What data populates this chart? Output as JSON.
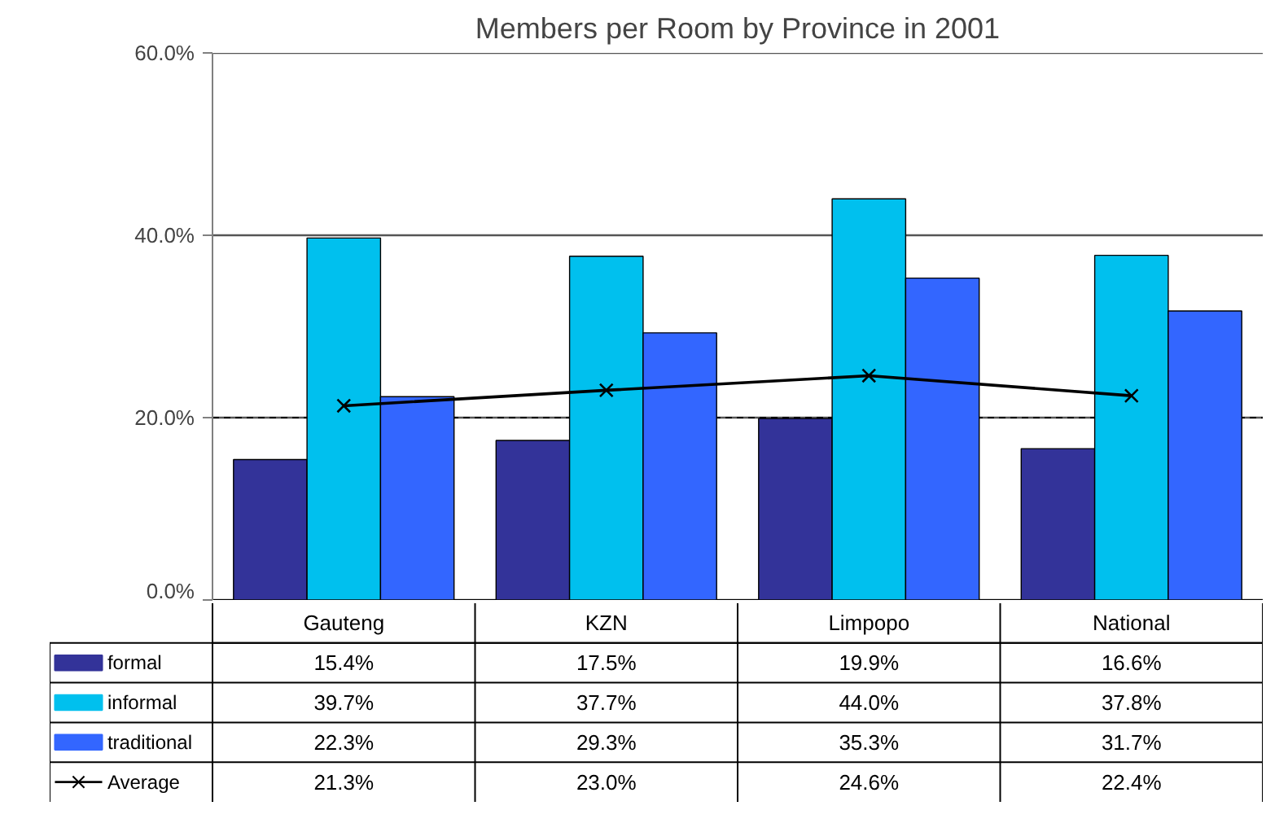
{
  "chart_data": {
    "type": "bar",
    "title": "Members per Room by Province in 2001",
    "categories": [
      "Gauteng",
      "KZN",
      "Limpopo",
      "National"
    ],
    "series": [
      {
        "name": "formal",
        "color": "#333399",
        "values": [
          15.4,
          17.5,
          19.9,
          16.6
        ]
      },
      {
        "name": "informal",
        "color": "#00c0ee",
        "values": [
          39.7,
          37.7,
          44.0,
          37.8
        ]
      },
      {
        "name": "traditional",
        "color": "#3366ff",
        "values": [
          22.3,
          29.3,
          35.3,
          31.7
        ]
      },
      {
        "name": "Average",
        "type": "line",
        "color": "#000000",
        "marker": "cross",
        "values": [
          21.3,
          23.0,
          24.6,
          22.4
        ]
      }
    ],
    "value_labels": [
      [
        "15.4%",
        "17.5%",
        "19.9%",
        "16.6%"
      ],
      [
        "39.7%",
        "37.7%",
        "44.0%",
        "37.8%"
      ],
      [
        "22.3%",
        "29.3%",
        "35.3%",
        "31.7%"
      ],
      [
        "21.3%",
        "23.0%",
        "24.6%",
        "22.4%"
      ]
    ],
    "ylim": [
      0,
      60
    ],
    "yticks": [
      {
        "value": 0,
        "label": "0.0%"
      },
      {
        "value": 20,
        "label": "20.0%"
      },
      {
        "value": 40,
        "label": "40.0%"
      },
      {
        "value": 60,
        "label": "60.0%"
      }
    ],
    "grid": "y",
    "ref_lines": [
      {
        "axis": "y",
        "value": 20,
        "color": "#000000",
        "line_style": "dashed"
      }
    ],
    "legend": "bottom"
  }
}
